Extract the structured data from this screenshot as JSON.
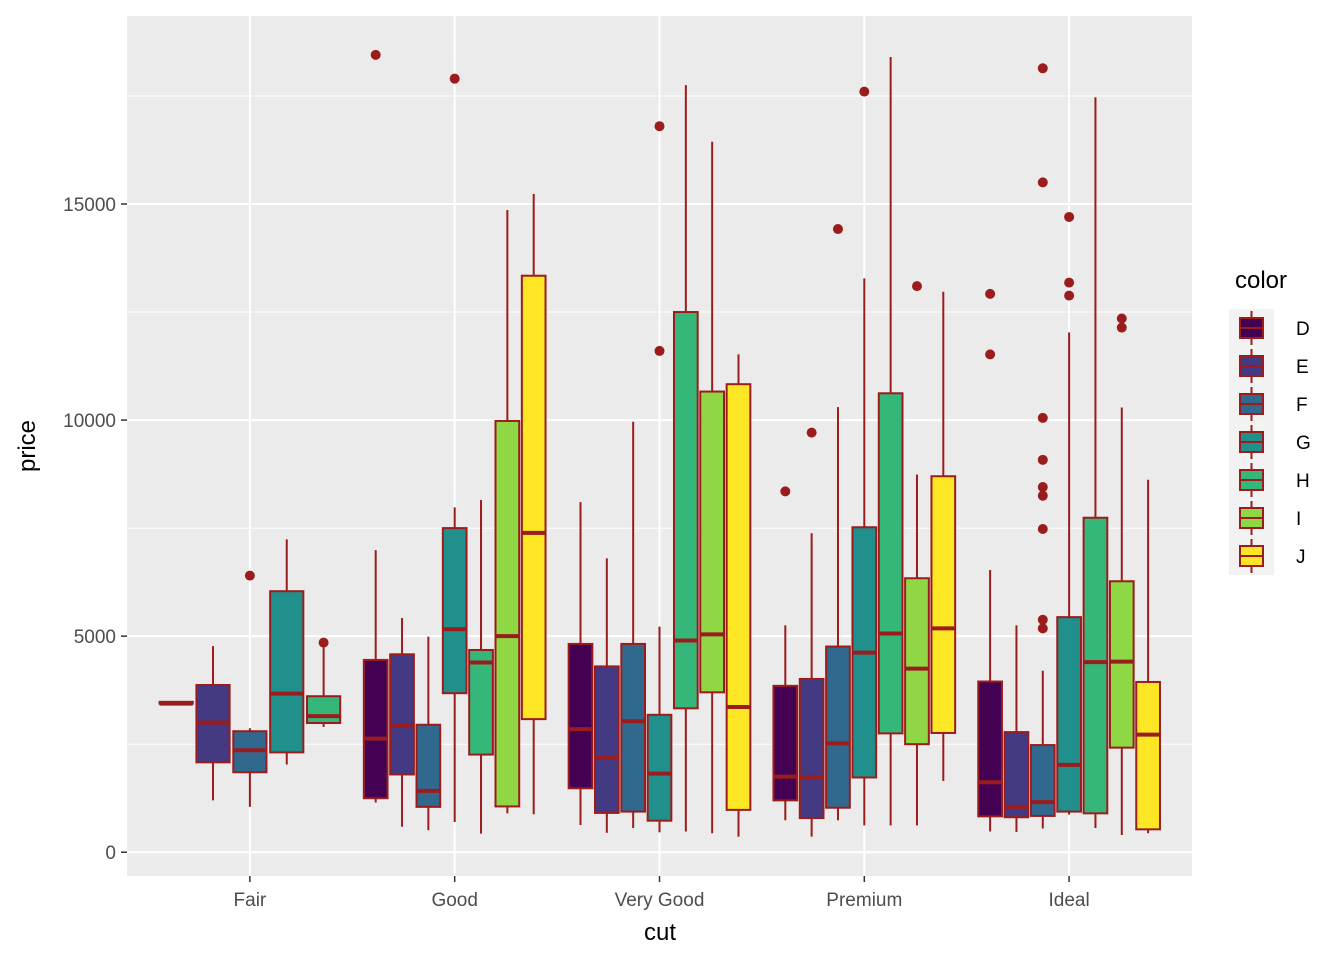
{
  "chart_data": {
    "type": "boxplot",
    "xlabel": "cut",
    "ylabel": "price",
    "categories": [
      "Fair",
      "Good",
      "Very Good",
      "Premium",
      "Ideal"
    ],
    "ylim": [
      -550,
      19350
    ],
    "yticks": [
      0,
      5000,
      10000,
      15000
    ],
    "ytick_labels": [
      "0",
      "5000",
      "10000",
      "15000"
    ],
    "grid": true,
    "legend": {
      "title": "color",
      "position": "right"
    },
    "outline_color": "#9b1c1c",
    "series": [
      {
        "name": "D",
        "color": "#440154",
        "boxes": [
          {
            "cut": "Fair",
            "min": 3440,
            "q1": 3440,
            "median": 3440,
            "q3": 3480,
            "max": 3480,
            "outliers": []
          },
          {
            "cut": "Good",
            "min": 1150,
            "q1": 1250,
            "median": 2630,
            "q3": 4450,
            "max": 6990,
            "outliers": [
              18450
            ]
          },
          {
            "cut": "Very Good",
            "min": 630,
            "q1": 1480,
            "median": 2850,
            "q3": 4820,
            "max": 8100,
            "outliers": []
          },
          {
            "cut": "Premium",
            "min": 740,
            "q1": 1200,
            "median": 1750,
            "q3": 3850,
            "max": 5250,
            "outliers": [
              8350
            ]
          },
          {
            "cut": "Ideal",
            "min": 480,
            "q1": 830,
            "median": 1620,
            "q3": 3950,
            "max": 6530,
            "outliers": [
              11520,
              12920
            ]
          }
        ]
      },
      {
        "name": "E",
        "color": "#443983",
        "boxes": [
          {
            "cut": "Fair",
            "min": 1200,
            "q1": 2080,
            "median": 3000,
            "q3": 3870,
            "max": 4770,
            "outliers": []
          },
          {
            "cut": "Good",
            "min": 590,
            "q1": 1800,
            "median": 2930,
            "q3": 4580,
            "max": 5420,
            "outliers": []
          },
          {
            "cut": "Very Good",
            "min": 450,
            "q1": 910,
            "median": 2180,
            "q3": 4300,
            "max": 6800,
            "outliers": []
          },
          {
            "cut": "Premium",
            "min": 360,
            "q1": 790,
            "median": 1740,
            "q3": 4010,
            "max": 7380,
            "outliers": [
              9710
            ]
          },
          {
            "cut": "Ideal",
            "min": 470,
            "q1": 810,
            "median": 1050,
            "q3": 2780,
            "max": 5250,
            "outliers": []
          }
        ]
      },
      {
        "name": "F",
        "color": "#31688e",
        "boxes": [
          {
            "cut": "Fair",
            "min": 1050,
            "q1": 1850,
            "median": 2360,
            "q3": 2800,
            "max": 2870,
            "outliers": [
              6400
            ]
          },
          {
            "cut": "Good",
            "min": 510,
            "q1": 1050,
            "median": 1420,
            "q3": 2950,
            "max": 4990,
            "outliers": []
          },
          {
            "cut": "Very Good",
            "min": 560,
            "q1": 940,
            "median": 3030,
            "q3": 4820,
            "max": 9960,
            "outliers": []
          },
          {
            "cut": "Premium",
            "min": 740,
            "q1": 1030,
            "median": 2520,
            "q3": 4760,
            "max": 10300,
            "outliers": [
              14420
            ]
          },
          {
            "cut": "Ideal",
            "min": 550,
            "q1": 840,
            "median": 1160,
            "q3": 2480,
            "max": 4200,
            "outliers": [
              5180,
              5380,
              7480,
              8250,
              8450,
              9080,
              10050,
              15500,
              18140
            ]
          }
        ]
      },
      {
        "name": "G",
        "color": "#21908d",
        "boxes": [
          {
            "cut": "Fair",
            "min": 2030,
            "q1": 2310,
            "median": 3670,
            "q3": 6040,
            "max": 7240,
            "outliers": []
          },
          {
            "cut": "Good",
            "min": 700,
            "q1": 3680,
            "median": 5160,
            "q3": 7500,
            "max": 7980,
            "outliers": [
              17900
            ]
          },
          {
            "cut": "Very Good",
            "min": 460,
            "q1": 730,
            "median": 1820,
            "q3": 3180,
            "max": 5220,
            "outliers": [
              11600,
              16800
            ]
          },
          {
            "cut": "Premium",
            "min": 620,
            "q1": 1730,
            "median": 4620,
            "q3": 7520,
            "max": 13280,
            "outliers": [
              17600
            ]
          },
          {
            "cut": "Ideal",
            "min": 870,
            "q1": 940,
            "median": 2020,
            "q3": 5440,
            "max": 12030,
            "outliers": [
              12880,
              13180,
              14700
            ]
          }
        ]
      },
      {
        "name": "H",
        "color": "#35b779",
        "boxes": [
          {
            "cut": "Fair",
            "min": 2900,
            "q1": 2990,
            "median": 3150,
            "q3": 3610,
            "max": 4850,
            "outliers": [
              4850
            ]
          },
          {
            "cut": "Good",
            "min": 430,
            "q1": 2260,
            "median": 4390,
            "q3": 4680,
            "max": 8150,
            "outliers": []
          },
          {
            "cut": "Very Good",
            "min": 480,
            "q1": 3330,
            "median": 4900,
            "q3": 12500,
            "max": 17750,
            "outliers": []
          },
          {
            "cut": "Premium",
            "min": 620,
            "q1": 2750,
            "median": 5060,
            "q3": 10620,
            "max": 18400,
            "outliers": []
          },
          {
            "cut": "Ideal",
            "min": 560,
            "q1": 900,
            "median": 4400,
            "q3": 7740,
            "max": 17470,
            "outliers": []
          }
        ]
      },
      {
        "name": "I",
        "color": "#8fd744",
        "boxes": [
          {
            "cut": "Good",
            "min": 900,
            "q1": 1060,
            "median": 5000,
            "q3": 9980,
            "max": 14860,
            "outliers": []
          },
          {
            "cut": "Very Good",
            "min": 440,
            "q1": 3700,
            "median": 5040,
            "q3": 10660,
            "max": 16440,
            "outliers": []
          },
          {
            "cut": "Premium",
            "min": 620,
            "q1": 2500,
            "median": 4250,
            "q3": 6340,
            "max": 8740,
            "outliers": [
              13100
            ]
          },
          {
            "cut": "Ideal",
            "min": 400,
            "q1": 2420,
            "median": 4410,
            "q3": 6270,
            "max": 10290,
            "outliers": [
              12140,
              12350
            ]
          }
        ]
      },
      {
        "name": "J",
        "color": "#fde725",
        "boxes": [
          {
            "cut": "Good",
            "min": 880,
            "q1": 3080,
            "median": 7390,
            "q3": 13340,
            "max": 15230,
            "outliers": []
          },
          {
            "cut": "Very Good",
            "min": 360,
            "q1": 980,
            "median": 3360,
            "q3": 10830,
            "max": 11520,
            "outliers": []
          },
          {
            "cut": "Premium",
            "min": 1650,
            "q1": 2760,
            "median": 5180,
            "q3": 8700,
            "max": 12970,
            "outliers": []
          },
          {
            "cut": "Ideal",
            "min": 440,
            "q1": 530,
            "median": 2720,
            "q3": 3940,
            "max": 8620,
            "outliers": []
          }
        ]
      }
    ]
  }
}
